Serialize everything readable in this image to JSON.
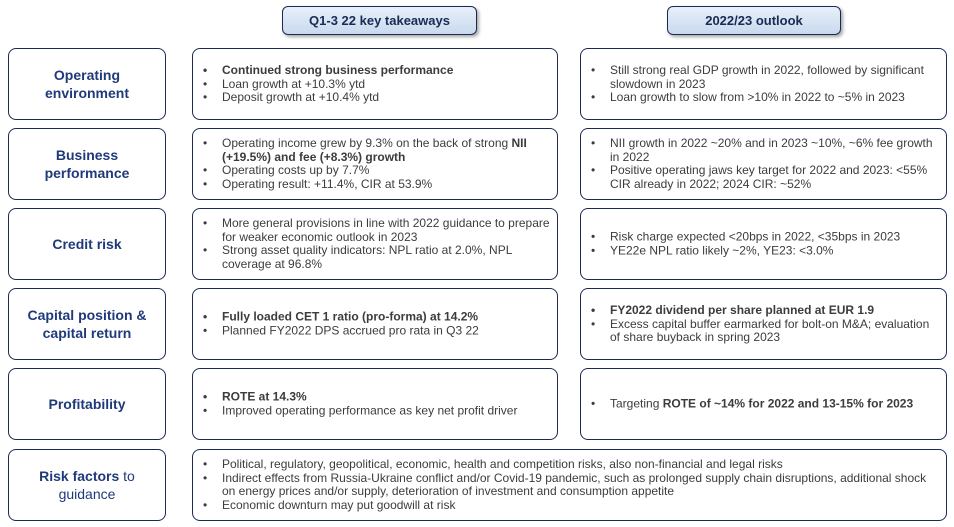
{
  "headers": {
    "left": "Q1-3 22 key takeaways",
    "right": "2022/23 outlook"
  },
  "rows": {
    "operating": {
      "label_l1": "Operating",
      "label_l2": "environment",
      "left": [
        "Continued strong business performance",
        "Loan growth at +10.3% ytd",
        "Deposit growth at +10.4% ytd"
      ],
      "right": [
        "Still strong real GDP growth in 2022, followed by significant slowdown in 2023",
        "Loan growth to slow from >10% in 2022 to  ~5% in 2023"
      ]
    },
    "business": {
      "label_l1": "Business",
      "label_l2": "performance",
      "left_1a": "Operating income grew by 9.3% on the back of strong ",
      "left_1b": "NII (+19.5%) and fee (+8.3%) growth",
      "left": [
        "Operating costs up by 7.7%",
        "Operating result: +11.4%, CIR at 53.9%"
      ],
      "right": [
        "NII growth in 2022 ~20% and in 2023 ~10%, ~6% fee growth in 2022",
        "Positive operating jaws key target for 2022 and 2023: <55% CIR already in 2022; 2024 CIR: ~52%"
      ]
    },
    "credit": {
      "label": "Credit risk",
      "left": [
        "More general provisions in line with 2022 guidance to prepare for weaker economic outlook in 2023",
        "Strong asset quality indicators: NPL ratio at 2.0%, NPL coverage at 96.8%"
      ],
      "right": [
        "Risk charge expected <20bps in 2022, <35bps in 2023",
        "YE22e NPL ratio likely ~2%, YE23: <3.0%"
      ]
    },
    "capital": {
      "label_l1": "Capital position &",
      "label_l2": "capital return",
      "left": [
        "Fully loaded CET 1 ratio (pro-forma) at 14.2%",
        "Planned FY2022 DPS accrued pro rata in Q3 22"
      ],
      "right": [
        "FY2022 dividend per share planned at EUR 1.9",
        "Excess capital buffer earmarked for bolt-on M&A; evaluation of share buyback in spring 2023"
      ]
    },
    "profitability": {
      "label": "Profitability",
      "left": [
        "ROTE at 14.3%",
        "Improved operating performance as key net profit driver"
      ],
      "right_a": "Targeting ",
      "right_b": "ROTE of ~14% for 2022 and 13-15% for 2023"
    },
    "risk": {
      "label_bold": "Risk factors",
      "label_rest": " to",
      "label_l2": "guidance",
      "items": [
        "Political, regulatory, geopolitical, economic, health and competition risks, also non-financial and legal risks",
        "Indirect effects from Russia-Ukraine conflict and/or Covid-19 pandemic, such as prolonged supply chain disruptions, additional shock on energy prices and/or supply, deterioration of investment and consumption appetite",
        "Economic downturn may put goodwill at risk"
      ]
    }
  }
}
